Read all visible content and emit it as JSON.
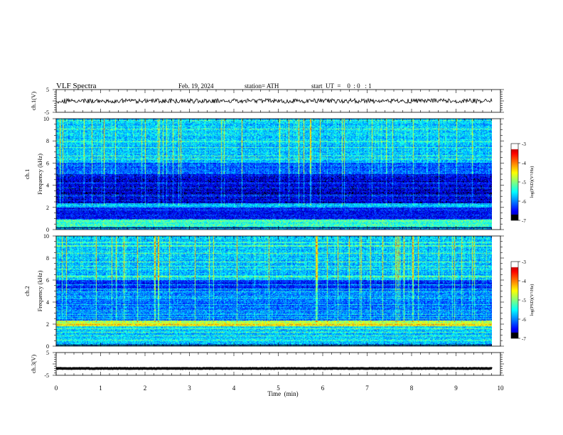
{
  "header": {
    "title": "VLF  Spectra",
    "date": "Feb. 19, 2024",
    "station": "station= ATH",
    "start": "start  UT  =    0  : 0   : 1"
  },
  "chart_data": [
    {
      "id": "ch1-time",
      "type": "line",
      "ylabel": "ch.1(V)",
      "ylim": [
        -5,
        5
      ],
      "ytick_labels": [
        "5",
        "-5"
      ],
      "xlim": [
        0,
        10
      ],
      "series": [
        {
          "baseline": 0,
          "amplitude_approx": 1
        }
      ]
    },
    {
      "id": "ch1-spectrogram",
      "type": "heatmap",
      "ylabel": "ch.1\nFrequency (kHz)",
      "ylim": [
        0,
        10
      ],
      "ytick_labels": [
        "0",
        "2",
        "4",
        "6",
        "8",
        "10"
      ],
      "xlim": [
        0,
        10
      ],
      "colorbar": {
        "label": "log(PSD)(V²/Hz)",
        "range": [
          -7,
          -3
        ],
        "tick_labels": [
          "-3",
          "-4",
          "-5",
          "-6",
          "-7"
        ]
      },
      "bands": [
        {
          "f": [
            0,
            0.25
          ],
          "level": -7
        },
        {
          "f": [
            0.25,
            0.9
          ],
          "level": -5.2
        },
        {
          "f": [
            0.9,
            2.0
          ],
          "level": -6.5
        },
        {
          "f": [
            2.0,
            2.4
          ],
          "level": -5.6
        },
        {
          "f": [
            2.4,
            5.0
          ],
          "level": -6.6
        },
        {
          "f": [
            5.0,
            6.0
          ],
          "level": -6.0
        },
        {
          "f": [
            6.0,
            10.0
          ],
          "level": -5.6
        }
      ]
    },
    {
      "id": "ch2-spectrogram",
      "type": "heatmap",
      "ylabel": "ch.2\nFrequency (kHz)",
      "ylim": [
        0,
        10
      ],
      "ytick_labels": [
        "0",
        "2",
        "4",
        "6",
        "8",
        "10"
      ],
      "xlim": [
        0,
        10
      ],
      "colorbar": {
        "label": "log(PSD)(V²/Hz)",
        "range": [
          -7,
          -3
        ],
        "tick_labels": [
          "-3",
          "-4",
          "-5",
          "-6",
          "-7"
        ]
      },
      "bands": [
        {
          "f": [
            0,
            0.25
          ],
          "level": -7
        },
        {
          "f": [
            0.25,
            1.8
          ],
          "level": -5.6
        },
        {
          "f": [
            1.8,
            2.3
          ],
          "level": -4.6
        },
        {
          "f": [
            2.3,
            5.2
          ],
          "level": -6.0
        },
        {
          "f": [
            5.2,
            6.0
          ],
          "level": -6.3
        },
        {
          "f": [
            6.0,
            10.0
          ],
          "level": -5.6
        }
      ]
    },
    {
      "id": "ch3-time",
      "type": "line",
      "ylabel": "ch.3(V)",
      "ylim": [
        -5,
        5
      ],
      "ytick_labels": [
        "5",
        "-5"
      ],
      "xlim": [
        0,
        10
      ],
      "series": [
        {
          "baseline": -2,
          "amplitude_approx": 0.1
        }
      ]
    }
  ],
  "x_axis": {
    "label": "Time  (min)",
    "ticks": [
      "0",
      "1",
      "2",
      "3",
      "4",
      "5",
      "6",
      "7",
      "8",
      "9",
      "10"
    ],
    "data_end": 9.8
  }
}
